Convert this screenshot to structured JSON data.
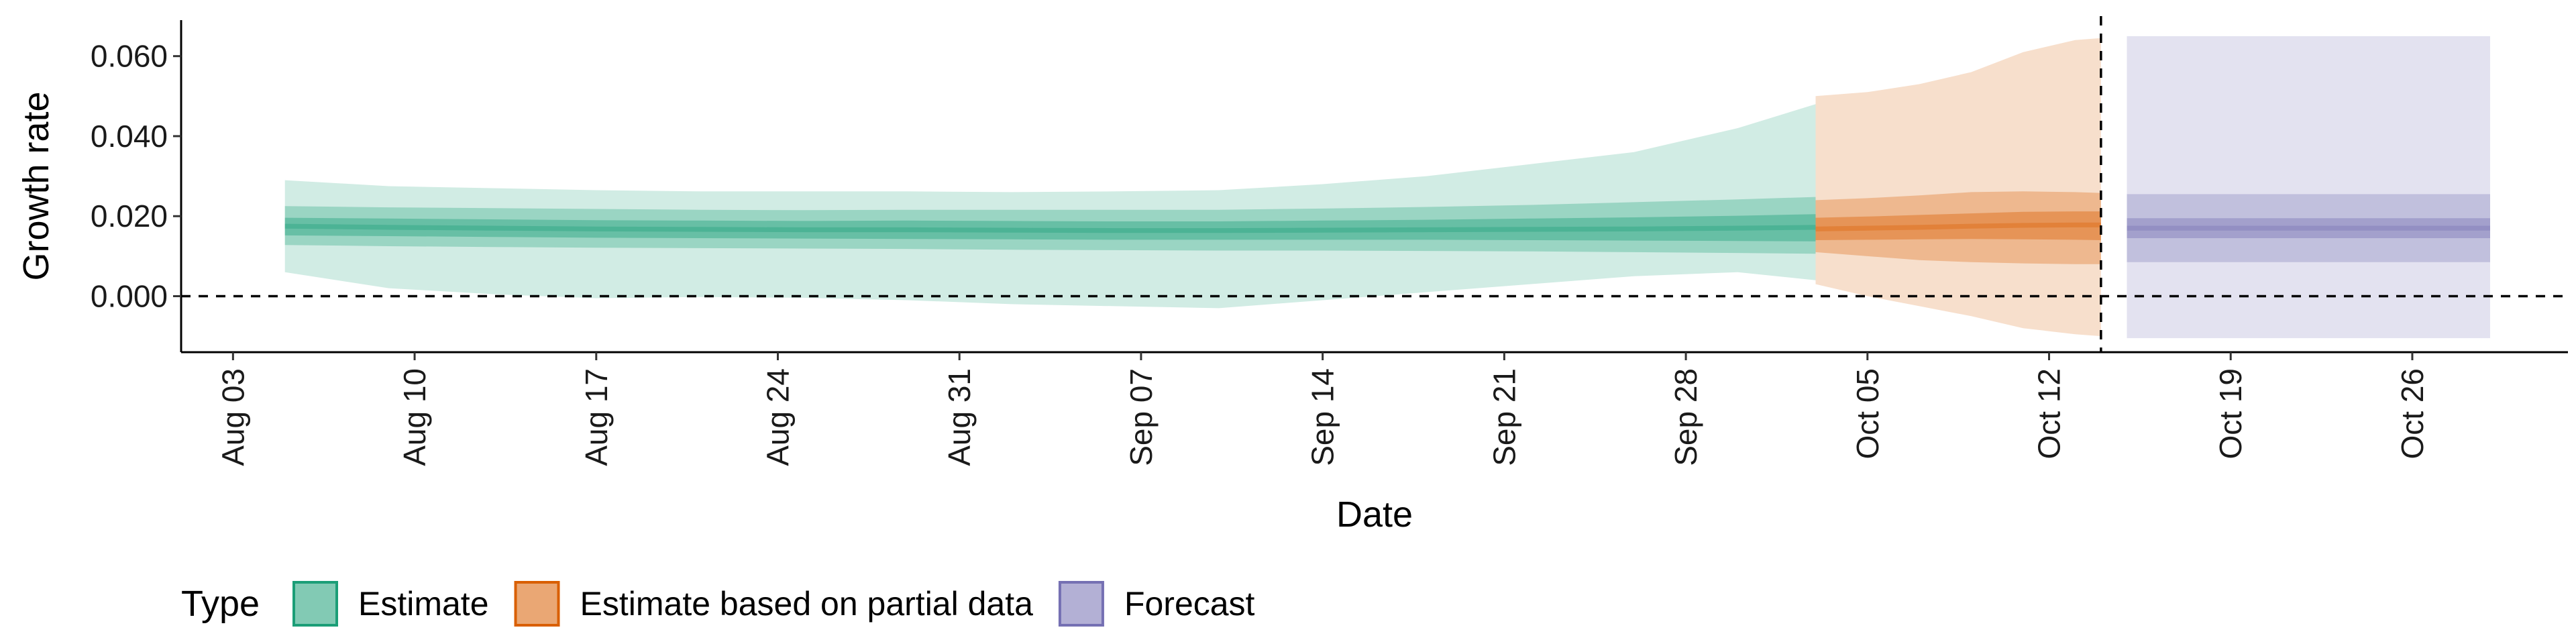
{
  "chart_data": {
    "type": "area",
    "title": "",
    "xlabel": "Date",
    "ylabel": "Growth rate",
    "x_type": "date",
    "xlim": [
      "2020-08-01",
      "2020-11-01"
    ],
    "ylim": [
      -0.014,
      0.069
    ],
    "x_ticks": [
      {
        "date": "2020-08-03",
        "label": "Aug 03"
      },
      {
        "date": "2020-08-10",
        "label": "Aug 10"
      },
      {
        "date": "2020-08-17",
        "label": "Aug 17"
      },
      {
        "date": "2020-08-24",
        "label": "Aug 24"
      },
      {
        "date": "2020-08-31",
        "label": "Aug 31"
      },
      {
        "date": "2020-09-07",
        "label": "Sep 07"
      },
      {
        "date": "2020-09-14",
        "label": "Sep 14"
      },
      {
        "date": "2020-09-21",
        "label": "Sep 21"
      },
      {
        "date": "2020-09-28",
        "label": "Sep 28"
      },
      {
        "date": "2020-10-05",
        "label": "Oct 05"
      },
      {
        "date": "2020-10-12",
        "label": "Oct 12"
      },
      {
        "date": "2020-10-19",
        "label": "Oct 19"
      },
      {
        "date": "2020-10-26",
        "label": "Oct 26"
      }
    ],
    "y_ticks": [
      {
        "value": 0.0,
        "label": "0.000"
      },
      {
        "value": 0.02,
        "label": "0.020"
      },
      {
        "value": 0.04,
        "label": "0.040"
      },
      {
        "value": 0.06,
        "label": "0.060"
      }
    ],
    "reference_lines": [
      {
        "axis": "y",
        "value": 0.0,
        "style": "dashed"
      },
      {
        "axis": "x",
        "value": "2020-10-14",
        "style": "dashed"
      }
    ],
    "grid": false,
    "legend": {
      "title": "Type",
      "position": "bottom-left",
      "entries": [
        {
          "label": "Estimate",
          "color": "#1b9e77"
        },
        {
          "label": "Estimate based on partial data",
          "color": "#d95f02"
        },
        {
          "label": "Forecast",
          "color": "#7570b3"
        }
      ]
    },
    "series": [
      {
        "name": "Estimate",
        "color": "#1b9e77",
        "x": [
          "2020-08-05",
          "2020-08-09",
          "2020-08-13",
          "2020-08-17",
          "2020-08-21",
          "2020-08-25",
          "2020-08-29",
          "2020-09-02",
          "2020-09-06",
          "2020-09-10",
          "2020-09-14",
          "2020-09-18",
          "2020-09-22",
          "2020-09-26",
          "2020-09-30",
          "2020-10-03"
        ],
        "median": [
          0.0175,
          0.0172,
          0.017,
          0.0168,
          0.0167,
          0.0166,
          0.0166,
          0.0165,
          0.0164,
          0.0164,
          0.0165,
          0.0166,
          0.0167,
          0.0168,
          0.017,
          0.0172
        ],
        "ci_50": [
          [
            0.0152,
            0.0196
          ],
          [
            0.015,
            0.0194
          ],
          [
            0.0148,
            0.0192
          ],
          [
            0.0146,
            0.019
          ],
          [
            0.0145,
            0.0189
          ],
          [
            0.0144,
            0.0188
          ],
          [
            0.0143,
            0.0189
          ],
          [
            0.0142,
            0.0188
          ],
          [
            0.0141,
            0.0187
          ],
          [
            0.0141,
            0.0187
          ],
          [
            0.0141,
            0.0189
          ],
          [
            0.0141,
            0.0191
          ],
          [
            0.014,
            0.0194
          ],
          [
            0.0139,
            0.0197
          ],
          [
            0.0138,
            0.0201
          ],
          [
            0.0137,
            0.0205
          ]
        ],
        "ci_90": [
          [
            0.0128,
            0.0225
          ],
          [
            0.0125,
            0.0222
          ],
          [
            0.0123,
            0.022
          ],
          [
            0.0121,
            0.0218
          ],
          [
            0.012,
            0.0216
          ],
          [
            0.0119,
            0.0215
          ],
          [
            0.0118,
            0.0216
          ],
          [
            0.0116,
            0.0216
          ],
          [
            0.0115,
            0.0216
          ],
          [
            0.0114,
            0.0216
          ],
          [
            0.0114,
            0.0219
          ],
          [
            0.0113,
            0.0223
          ],
          [
            0.0112,
            0.0228
          ],
          [
            0.011,
            0.0235
          ],
          [
            0.0108,
            0.0242
          ],
          [
            0.0106,
            0.0248
          ]
        ],
        "ci_95": [
          [
            0.006,
            0.029
          ],
          [
            0.002,
            0.0275
          ],
          [
            0.0005,
            0.027
          ],
          [
            -0.0005,
            0.0265
          ],
          [
            -0.0002,
            0.0262
          ],
          [
            -0.0004,
            0.0262
          ],
          [
            -0.001,
            0.0262
          ],
          [
            -0.002,
            0.026
          ],
          [
            -0.0025,
            0.0262
          ],
          [
            -0.003,
            0.0265
          ],
          [
            -0.001,
            0.028
          ],
          [
            0.001,
            0.03
          ],
          [
            0.003,
            0.033
          ],
          [
            0.005,
            0.036
          ],
          [
            0.006,
            0.042
          ],
          [
            0.004,
            0.048
          ]
        ]
      },
      {
        "name": "Estimate based on partial data",
        "color": "#d95f02",
        "x": [
          "2020-10-03",
          "2020-10-05",
          "2020-10-07",
          "2020-10-09",
          "2020-10-11",
          "2020-10-13",
          "2020-10-14"
        ],
        "median": [
          0.0168,
          0.017,
          0.0172,
          0.0175,
          0.0177,
          0.0178,
          0.0178
        ],
        "ci_50": [
          [
            0.014,
            0.0196
          ],
          [
            0.0141,
            0.0199
          ],
          [
            0.0142,
            0.0203
          ],
          [
            0.0143,
            0.0207
          ],
          [
            0.0142,
            0.0211
          ],
          [
            0.0141,
            0.0212
          ],
          [
            0.014,
            0.0212
          ]
        ],
        "ci_90": [
          [
            0.011,
            0.024
          ],
          [
            0.01,
            0.0245
          ],
          [
            0.009,
            0.0252
          ],
          [
            0.0085,
            0.026
          ],
          [
            0.0082,
            0.0262
          ],
          [
            0.008,
            0.026
          ],
          [
            0.008,
            0.0258
          ]
        ],
        "ci_95": [
          [
            0.003,
            0.05
          ],
          [
            0.0,
            0.051
          ],
          [
            -0.0025,
            0.053
          ],
          [
            -0.005,
            0.056
          ],
          [
            -0.008,
            0.061
          ],
          [
            -0.0095,
            0.064
          ],
          [
            -0.01,
            0.0645
          ]
        ]
      },
      {
        "name": "Forecast",
        "color": "#7570b3",
        "x": [
          "2020-10-15",
          "2020-10-29"
        ],
        "median": [
          0.017,
          0.017
        ],
        "ci_50": [
          [
            0.0145,
            0.0195
          ],
          [
            0.0145,
            0.0195
          ]
        ],
        "ci_90": [
          [
            0.0085,
            0.0255
          ],
          [
            0.0085,
            0.0255
          ]
        ],
        "ci_95": [
          [
            -0.0105,
            0.065
          ],
          [
            -0.0105,
            0.065
          ]
        ]
      }
    ]
  }
}
